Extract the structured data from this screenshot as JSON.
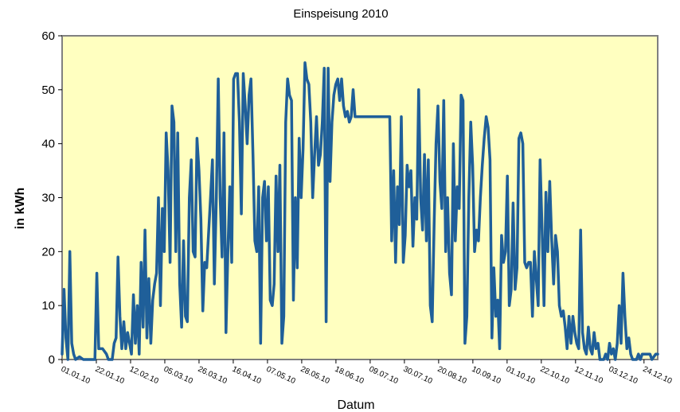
{
  "chart_data": {
    "type": "line",
    "title": "Einspeisung 2010",
    "xlabel": "Datum",
    "ylabel": "in kWh",
    "ylim": [
      0,
      60
    ],
    "yticks": [
      "0",
      "10",
      "20",
      "30",
      "40",
      "50",
      "60"
    ],
    "xlim": [
      "01.01.10",
      "31.12.10"
    ],
    "xticks": [
      "01.01.10",
      "22.01.10",
      "12.02.10",
      "05.03.10",
      "26.03.10",
      "16.04.10",
      "07.05.10",
      "28.05.10",
      "18.06.10",
      "09.07.10",
      "30.07.10",
      "20.08.10",
      "10.09.10",
      "01.10.10",
      "22.10.10",
      "12.11.10",
      "03.12.10",
      "24.12.10"
    ],
    "grid": false,
    "background": "#ffffc0",
    "colors": {
      "line": "#1f5f99",
      "frame": "#808080"
    },
    "series": [
      {
        "values": [
          [
            0,
            1
          ],
          [
            1,
            13
          ],
          [
            2,
            4
          ],
          [
            3,
            0
          ],
          [
            4,
            20
          ],
          [
            5,
            3
          ],
          [
            6,
            1
          ],
          [
            7,
            0
          ],
          [
            9,
            0.5
          ],
          [
            11,
            0
          ],
          [
            14,
            0
          ],
          [
            17,
            0
          ],
          [
            18,
            16
          ],
          [
            19,
            2
          ],
          [
            21,
            2
          ],
          [
            23,
            1
          ],
          [
            24,
            0
          ],
          [
            26,
            0
          ],
          [
            27,
            3
          ],
          [
            28,
            4
          ],
          [
            29,
            19
          ],
          [
            30,
            8
          ],
          [
            31,
            2
          ],
          [
            32,
            7
          ],
          [
            33,
            2
          ],
          [
            34,
            5
          ],
          [
            35,
            3
          ],
          [
            36,
            1
          ],
          [
            37,
            12
          ],
          [
            38,
            3
          ],
          [
            39,
            10
          ],
          [
            40,
            1
          ],
          [
            41,
            18
          ],
          [
            42,
            6
          ],
          [
            43,
            24
          ],
          [
            44,
            4
          ],
          [
            45,
            15
          ],
          [
            46,
            3
          ],
          [
            47,
            11
          ],
          [
            48,
            14
          ],
          [
            49,
            16
          ],
          [
            50,
            30
          ],
          [
            51,
            10
          ],
          [
            52,
            28
          ],
          [
            53,
            20
          ],
          [
            54,
            42
          ],
          [
            55,
            35
          ],
          [
            56,
            18
          ],
          [
            57,
            47
          ],
          [
            58,
            44
          ],
          [
            59,
            20
          ],
          [
            60,
            42
          ],
          [
            61,
            14
          ],
          [
            62,
            6
          ],
          [
            63,
            22
          ],
          [
            64,
            8
          ],
          [
            65,
            7
          ],
          [
            66,
            30
          ],
          [
            67,
            37
          ],
          [
            68,
            20
          ],
          [
            69,
            19
          ],
          [
            70,
            41
          ],
          [
            71,
            35
          ],
          [
            72,
            26
          ],
          [
            73,
            9
          ],
          [
            74,
            18
          ],
          [
            75,
            17
          ],
          [
            77,
            30
          ],
          [
            78,
            37
          ],
          [
            79,
            14
          ],
          [
            80,
            30
          ],
          [
            81,
            52
          ],
          [
            82,
            30
          ],
          [
            83,
            19
          ],
          [
            84,
            42
          ],
          [
            85,
            5
          ],
          [
            86,
            20
          ],
          [
            87,
            32
          ],
          [
            88,
            18
          ],
          [
            89,
            52
          ],
          [
            90,
            53
          ],
          [
            91,
            53
          ],
          [
            92,
            44
          ],
          [
            93,
            27
          ],
          [
            94,
            53
          ],
          [
            95,
            47
          ],
          [
            96,
            40
          ],
          [
            97,
            49
          ],
          [
            98,
            52
          ],
          [
            99,
            38
          ],
          [
            100,
            22
          ],
          [
            101,
            20
          ],
          [
            102,
            32
          ],
          [
            103,
            3
          ],
          [
            104,
            30
          ],
          [
            105,
            33
          ],
          [
            106,
            22
          ],
          [
            107,
            32
          ],
          [
            108,
            11
          ],
          [
            109,
            10
          ],
          [
            110,
            14
          ],
          [
            111,
            34
          ],
          [
            112,
            20
          ],
          [
            113,
            36
          ],
          [
            114,
            3
          ],
          [
            115,
            8
          ],
          [
            116,
            44
          ],
          [
            117,
            52
          ],
          [
            118,
            49
          ],
          [
            119,
            48
          ],
          [
            120,
            11
          ],
          [
            121,
            30
          ],
          [
            122,
            17
          ],
          [
            123,
            41
          ],
          [
            124,
            30
          ],
          [
            125,
            39
          ],
          [
            126,
            55
          ],
          [
            127,
            52
          ],
          [
            128,
            51
          ],
          [
            129,
            44
          ],
          [
            130,
            30
          ],
          [
            131,
            38
          ],
          [
            132,
            45
          ],
          [
            133,
            36
          ],
          [
            134,
            38
          ],
          [
            135,
            44
          ],
          [
            136,
            54
          ],
          [
            137,
            7
          ],
          [
            138,
            54
          ],
          [
            139,
            33
          ],
          [
            140,
            44
          ],
          [
            141,
            49
          ],
          [
            142,
            51
          ],
          [
            143,
            52
          ],
          [
            144,
            48
          ],
          [
            145,
            52
          ],
          [
            146,
            47
          ],
          [
            147,
            45
          ],
          [
            148,
            46
          ],
          [
            149,
            44
          ],
          [
            150,
            45
          ],
          [
            151,
            50
          ],
          [
            152,
            45
          ],
          [
            153,
            45
          ],
          [
            155,
            45
          ],
          [
            160,
            45
          ],
          [
            165,
            45
          ],
          [
            170,
            45
          ],
          [
            171,
            22
          ],
          [
            172,
            35
          ],
          [
            173,
            18
          ],
          [
            174,
            32
          ],
          [
            175,
            25
          ],
          [
            176,
            45
          ],
          [
            177,
            18
          ],
          [
            178,
            23
          ],
          [
            179,
            36
          ],
          [
            180,
            32
          ],
          [
            181,
            35
          ],
          [
            182,
            21
          ],
          [
            183,
            30
          ],
          [
            184,
            26
          ],
          [
            185,
            50
          ],
          [
            186,
            30
          ],
          [
            187,
            24
          ],
          [
            188,
            38
          ],
          [
            189,
            22
          ],
          [
            190,
            37
          ],
          [
            191,
            10
          ],
          [
            192,
            7
          ],
          [
            193,
            25
          ],
          [
            194,
            40
          ],
          [
            195,
            47
          ],
          [
            196,
            33
          ],
          [
            197,
            28
          ],
          [
            198,
            48
          ],
          [
            199,
            20
          ],
          [
            200,
            30
          ],
          [
            201,
            16
          ],
          [
            202,
            12
          ],
          [
            203,
            40
          ],
          [
            204,
            22
          ],
          [
            205,
            32
          ],
          [
            206,
            28
          ],
          [
            207,
            49
          ],
          [
            208,
            48
          ],
          [
            209,
            3
          ],
          [
            210,
            8
          ],
          [
            211,
            30
          ],
          [
            212,
            44
          ],
          [
            213,
            36
          ],
          [
            214,
            20
          ],
          [
            215,
            24
          ],
          [
            216,
            22
          ],
          [
            217,
            30
          ],
          [
            218,
            36
          ],
          [
            219,
            41
          ],
          [
            220,
            45
          ],
          [
            221,
            43
          ],
          [
            222,
            37
          ],
          [
            223,
            4
          ],
          [
            224,
            17
          ],
          [
            225,
            8
          ],
          [
            226,
            11
          ],
          [
            227,
            2
          ],
          [
            228,
            23
          ],
          [
            229,
            18
          ],
          [
            230,
            20
          ],
          [
            231,
            34
          ],
          [
            232,
            10
          ],
          [
            233,
            13
          ],
          [
            234,
            29
          ],
          [
            235,
            13
          ],
          [
            236,
            17
          ],
          [
            237,
            41
          ],
          [
            238,
            42
          ],
          [
            239,
            40
          ],
          [
            240,
            18
          ],
          [
            241,
            17
          ],
          [
            242,
            18
          ],
          [
            243,
            18
          ],
          [
            244,
            8
          ],
          [
            245,
            20
          ],
          [
            246,
            15
          ],
          [
            247,
            10
          ],
          [
            248,
            37
          ],
          [
            249,
            24
          ],
          [
            250,
            10
          ],
          [
            251,
            31
          ],
          [
            252,
            20
          ],
          [
            253,
            33
          ],
          [
            254,
            22
          ],
          [
            255,
            14
          ],
          [
            256,
            23
          ],
          [
            257,
            20
          ],
          [
            258,
            10
          ],
          [
            259,
            8
          ],
          [
            260,
            9
          ],
          [
            261,
            6
          ],
          [
            262,
            2
          ],
          [
            263,
            8
          ],
          [
            264,
            3
          ],
          [
            265,
            8
          ],
          [
            266,
            5
          ],
          [
            267,
            3
          ],
          [
            268,
            2
          ],
          [
            269,
            24
          ],
          [
            270,
            5
          ],
          [
            271,
            2
          ],
          [
            272,
            1
          ],
          [
            273,
            6
          ],
          [
            274,
            2
          ],
          [
            275,
            1
          ],
          [
            276,
            5
          ],
          [
            277,
            2
          ],
          [
            278,
            3
          ],
          [
            279,
            0
          ],
          [
            280,
            0
          ],
          [
            281,
            0
          ],
          [
            282,
            1
          ],
          [
            283,
            0
          ],
          [
            284,
            3
          ],
          [
            285,
            1
          ],
          [
            286,
            2
          ],
          [
            287,
            0
          ],
          [
            288,
            3
          ],
          [
            289,
            10
          ],
          [
            290,
            3
          ],
          [
            291,
            16
          ],
          [
            292,
            8
          ],
          [
            293,
            2
          ],
          [
            294,
            4
          ],
          [
            295,
            1
          ],
          [
            296,
            0
          ],
          [
            297,
            0
          ],
          [
            298,
            0
          ],
          [
            299,
            1
          ],
          [
            300,
            0
          ],
          [
            301,
            1
          ],
          [
            303,
            1
          ],
          [
            305,
            1
          ],
          [
            306,
            0
          ],
          [
            308,
            1
          ],
          [
            309,
            1
          ]
        ]
      }
    ]
  }
}
